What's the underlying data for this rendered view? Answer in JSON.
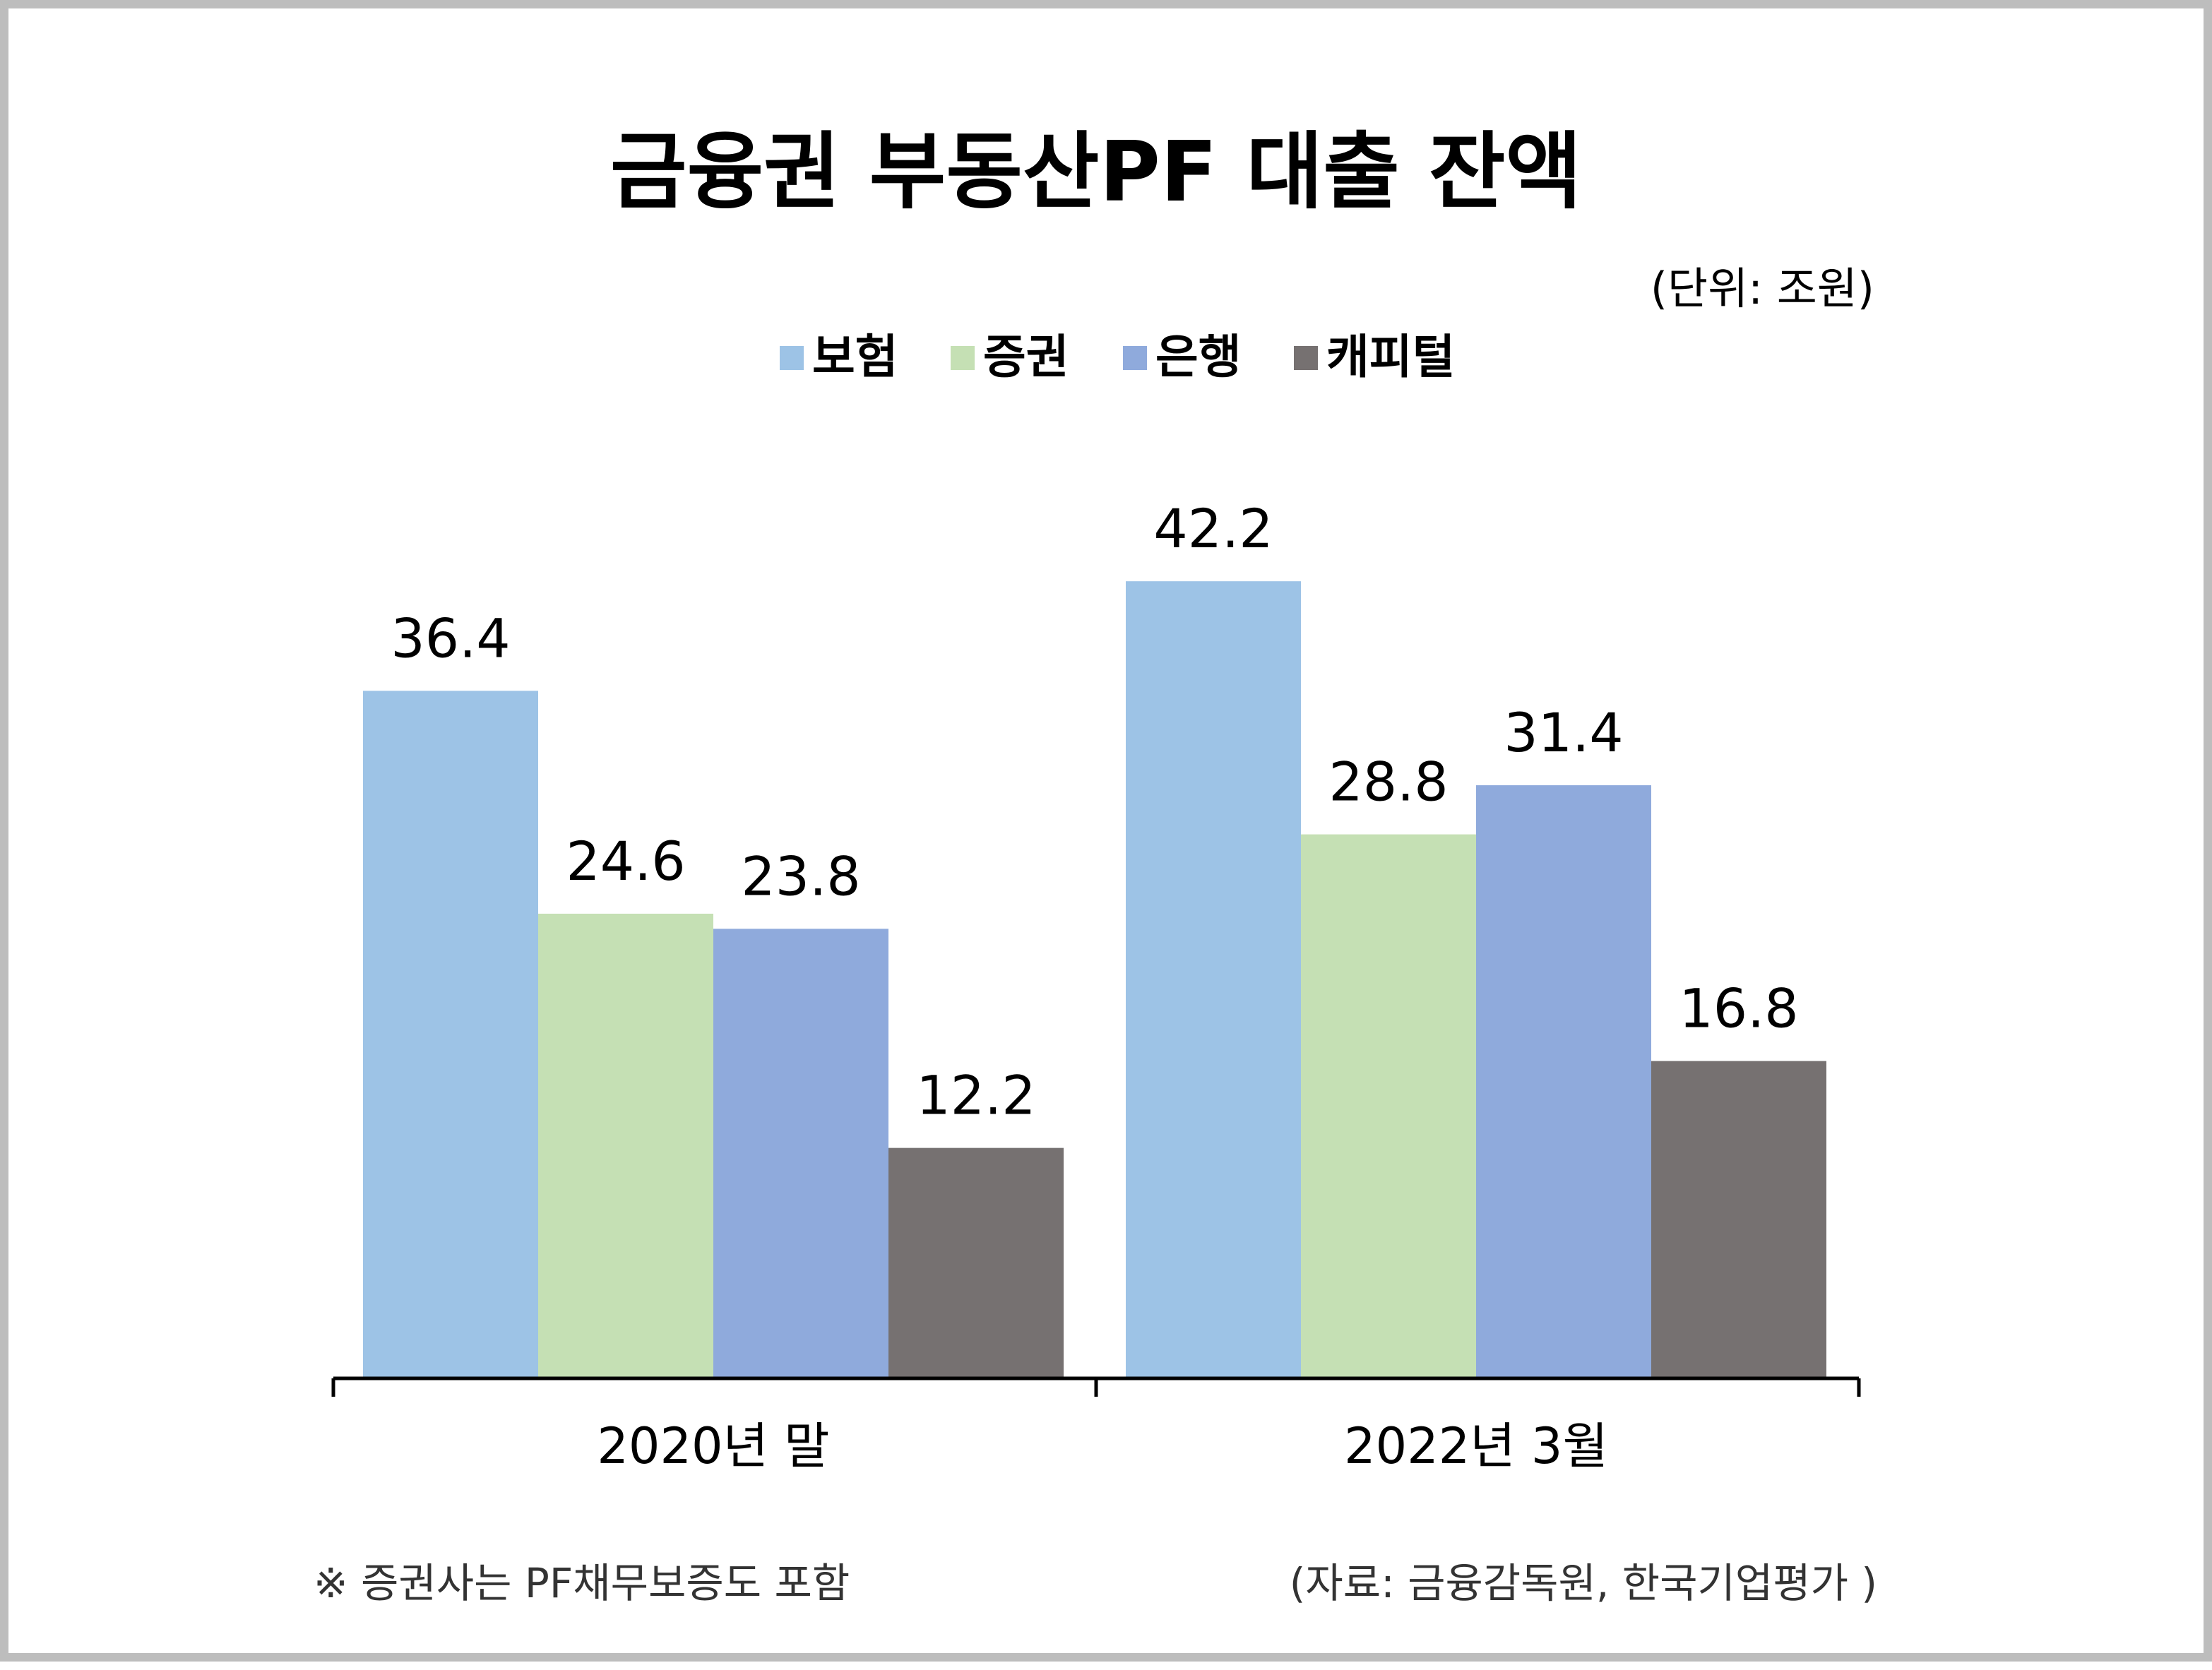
{
  "chart_data": {
    "type": "bar",
    "title": "금융권 부동산PF 대출 잔액",
    "unit": "(단위: 조원)",
    "categories": [
      "2020년 말",
      "2022년 3월"
    ],
    "series": [
      {
        "name": "보험",
        "values": [
          36.4,
          42.2
        ],
        "color": "#9dc3e6"
      },
      {
        "name": "증권",
        "values": [
          24.6,
          28.8
        ],
        "color": "#c5e0b4"
      },
      {
        "name": "은행",
        "values": [
          23.8,
          31.4
        ],
        "color": "#8faadc"
      },
      {
        "name": "캐피털",
        "values": [
          12.2,
          16.8
        ],
        "color": "#767171"
      }
    ],
    "ylim": [
      0,
      45
    ],
    "legend_position": "top-center",
    "grid": false
  },
  "footnote": "※ 증권사는 PF채무보증도 포함",
  "source": "(자료: 금융감독원, 한국기업평가 )"
}
